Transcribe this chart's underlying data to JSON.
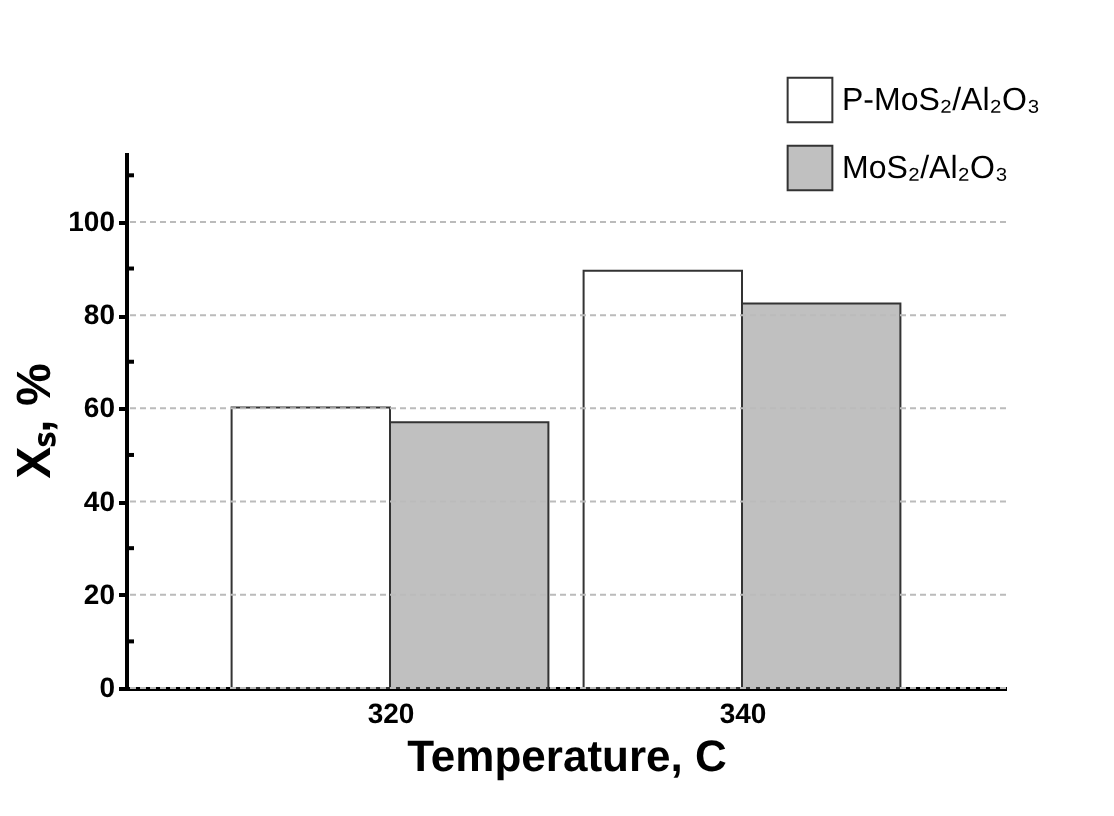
{
  "chart_data": {
    "type": "bar",
    "xlabel": "Temperature, C",
    "ylabel": "Xₛ, %",
    "categories": [
      "320",
      "340"
    ],
    "series": [
      {
        "name": "P-MoS₂/Al₂O₃",
        "color": "#ffffff",
        "values": [
          60.2,
          89.5
        ]
      },
      {
        "name": "MoS₂/Al₂O₃",
        "color": "#c0c0c0",
        "values": [
          57,
          82.5
        ]
      }
    ],
    "ylim": [
      0,
      115
    ],
    "yticks": [
      0,
      {
        "value": 10,
        "label": null
      },
      20,
      {
        "value": 30,
        "label": null
      },
      40,
      {
        "value": 50,
        "label": null
      },
      60,
      {
        "value": 70,
        "label": null
      },
      80,
      {
        "value": 90,
        "label": null
      },
      100,
      {
        "value": 110,
        "label": null
      }
    ],
    "grid": "y",
    "legend": "top right"
  }
}
